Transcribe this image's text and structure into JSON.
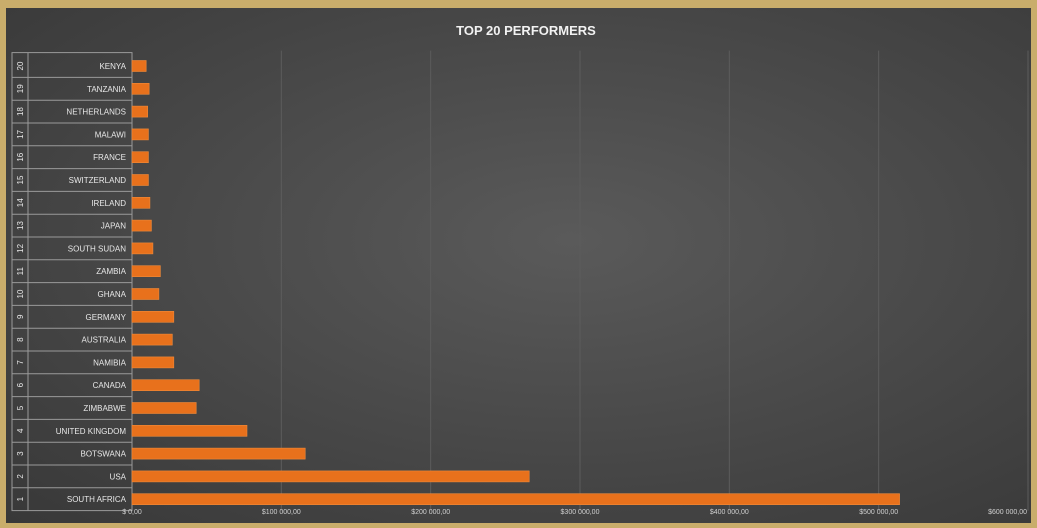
{
  "chart_data": {
    "type": "bar",
    "orientation": "horizontal",
    "title": "TOP 20 PERFORMERS",
    "xlabel": "",
    "ylabel": "",
    "categories": [
      "SOUTH AFRICA",
      "USA",
      "BOTSWANA",
      "UNITED KINGDOM",
      "ZIMBABWE",
      "CANADA",
      "NAMIBIA",
      "AUSTRALIA",
      "GERMANY",
      "GHANA",
      "ZAMBIA",
      "SOUTH SUDAN",
      "JAPAN",
      "IRELAND",
      "SWITZERLAND",
      "FRANCE",
      "MALAWI",
      "NETHERLANDS",
      "TANZANIA",
      "KENYA"
    ],
    "ranks": [
      "1",
      "2",
      "3",
      "4",
      "5",
      "6",
      "7",
      "8",
      "9",
      "10",
      "11",
      "12",
      "13",
      "14",
      "15",
      "16",
      "17",
      "18",
      "19",
      "20"
    ],
    "values": [
      514000,
      266000,
      116000,
      77000,
      43000,
      45000,
      28000,
      27000,
      28000,
      18000,
      19000,
      14000,
      13000,
      12000,
      11000,
      11000,
      11000,
      10500,
      11500,
      9500
    ],
    "xlim": [
      0,
      600000
    ],
    "xticks": [
      0,
      100000,
      200000,
      300000,
      400000,
      500000,
      600000
    ],
    "xtick_labels": [
      "$ 0,00",
      "$100 000,00",
      "$200 000,00",
      "$300 000,00",
      "$400 000,00",
      "$500 000,00",
      "$600 000,00"
    ],
    "grid": "vertical",
    "legend": "none",
    "colors": {
      "bar": "#e8711c",
      "bar_edge": "#f08a3a",
      "title": "#f2f2f2",
      "label": "#e8e8e8",
      "grid": "#5c5c5c"
    }
  }
}
